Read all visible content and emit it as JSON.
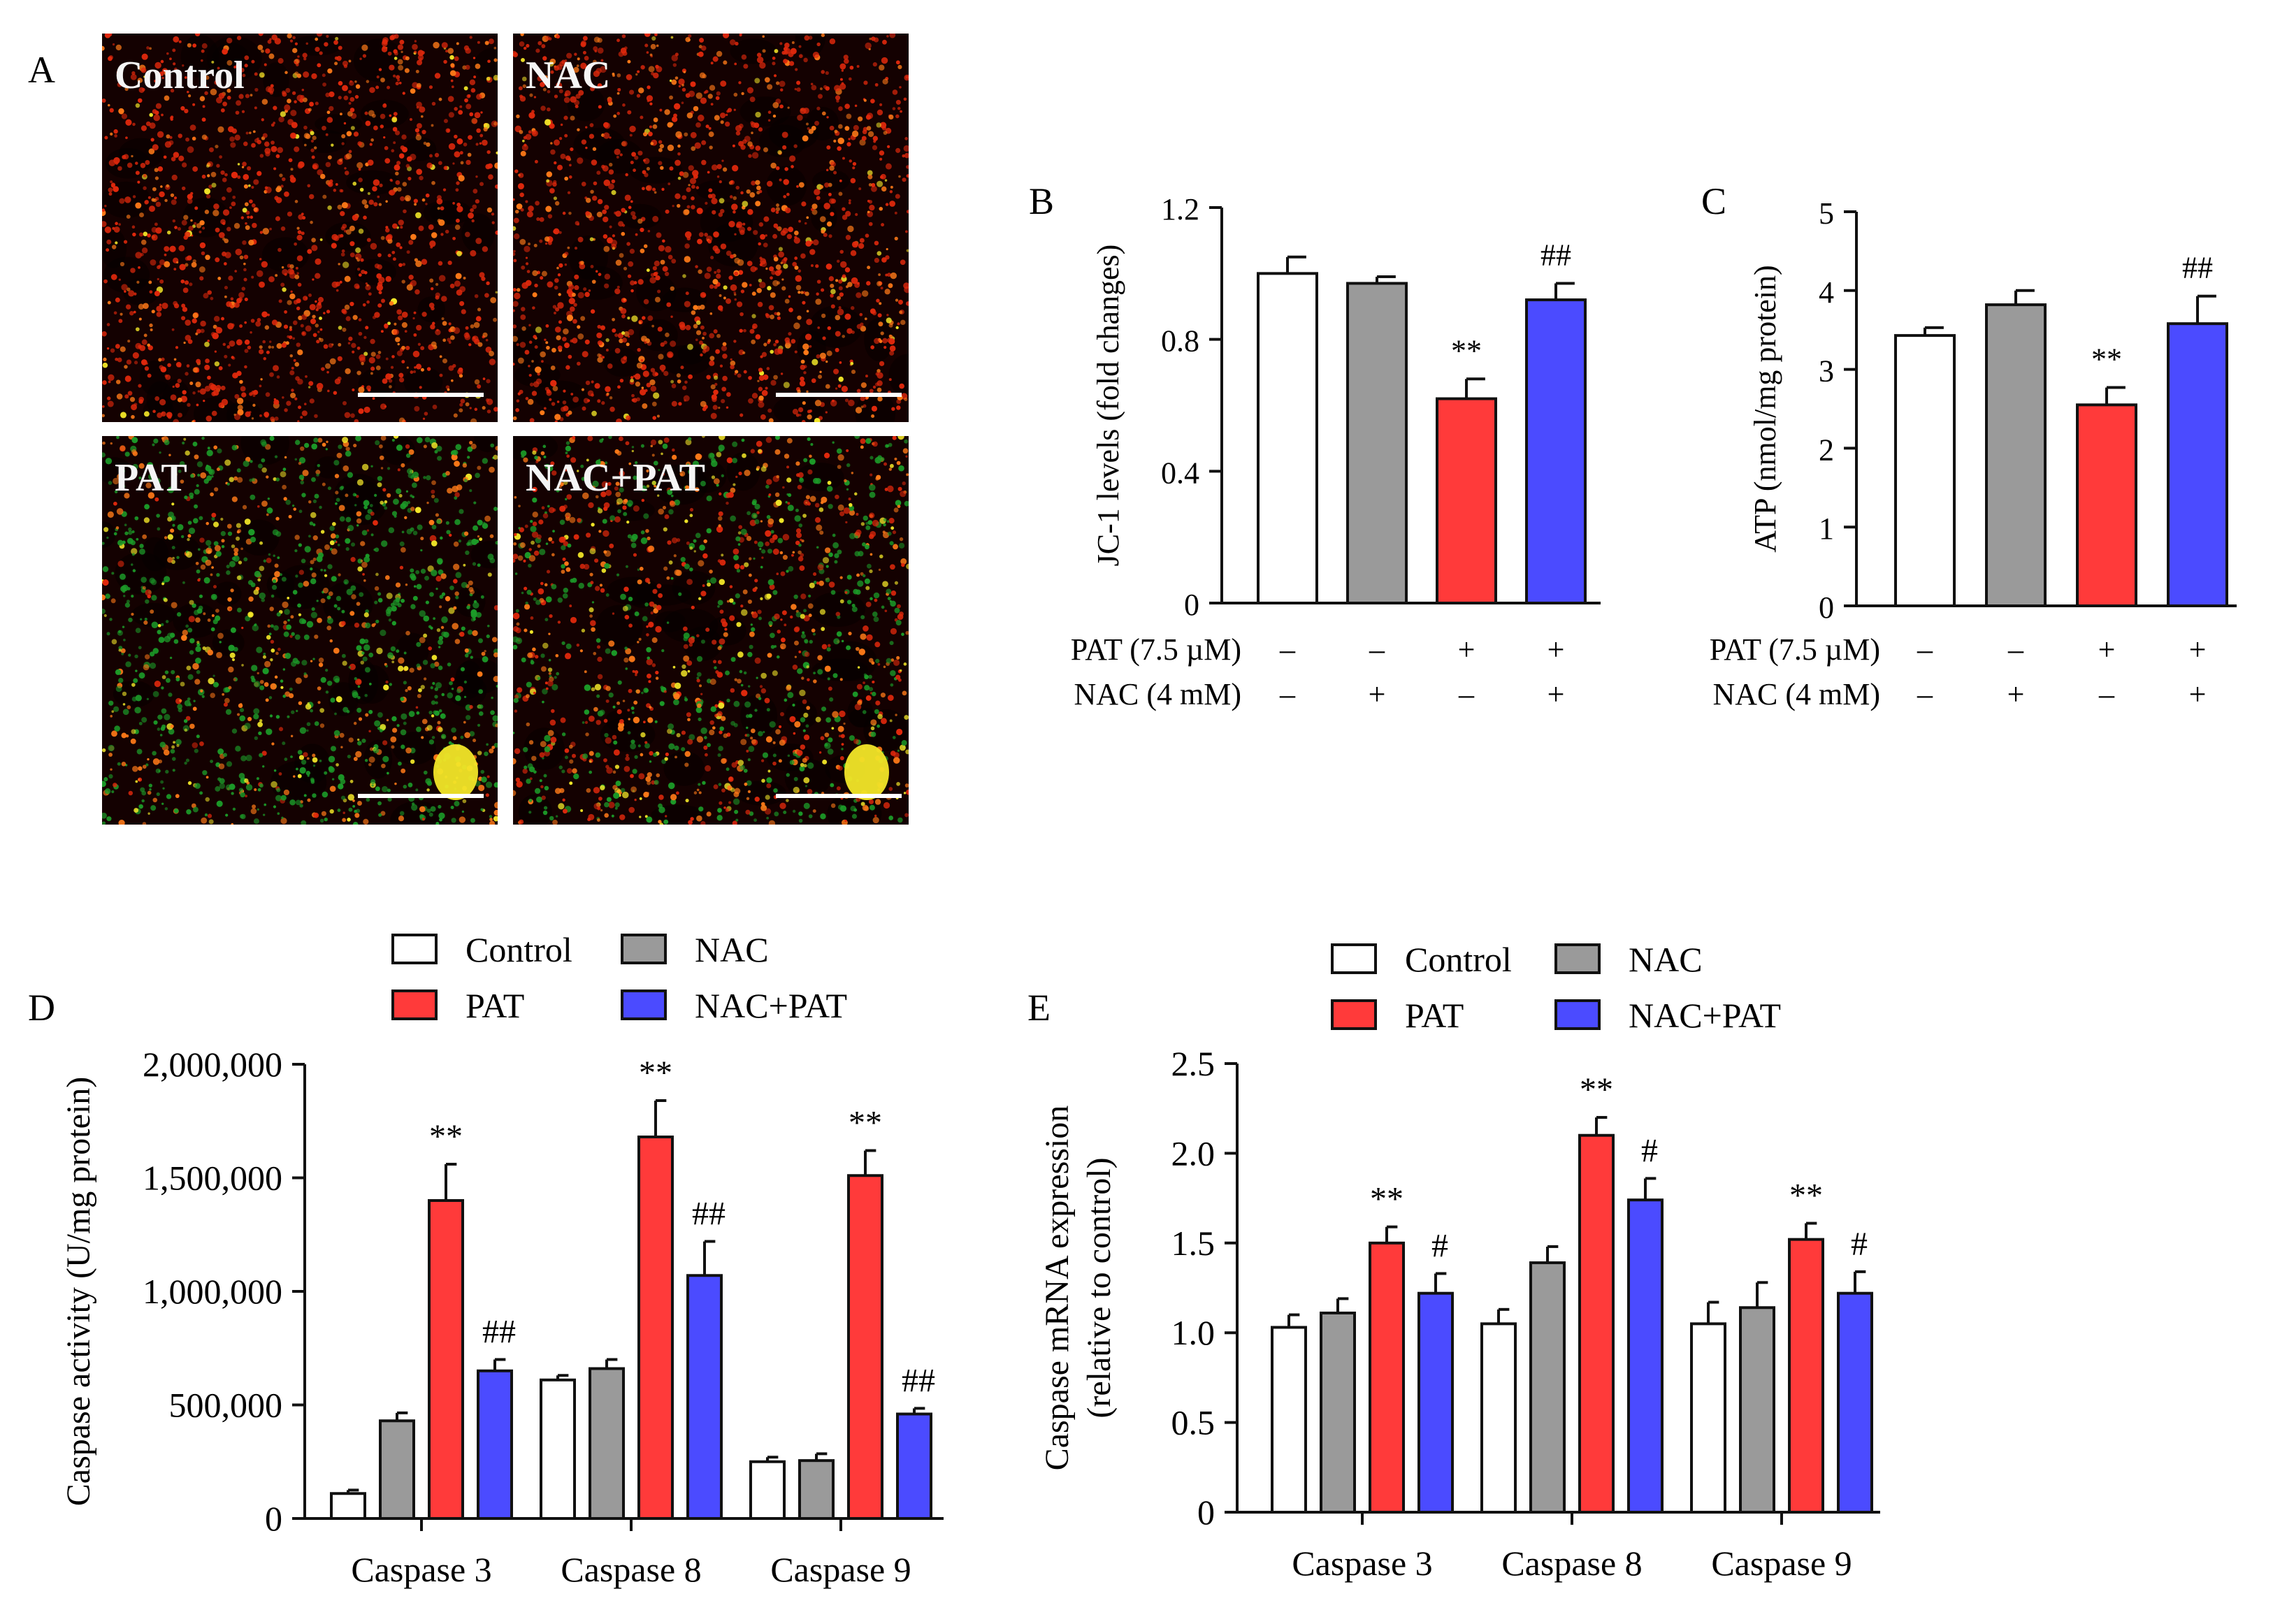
{
  "colors": {
    "control": "#ffffff",
    "nac": "#9a9a9a",
    "pat": "#ff3a3a",
    "nacpat": "#4b4bff",
    "axis": "#111111",
    "micro_bg": "#140101",
    "micro_red": "#e0280c",
    "micro_orange": "#ff7a18",
    "micro_green": "#1c9a28",
    "micro_yellow": "#f2e628",
    "micro_label": "#f5f5f5"
  },
  "panel_a": {
    "letter": "A",
    "images": [
      {
        "label": "Control",
        "style": "red"
      },
      {
        "label": "NAC",
        "style": "red"
      },
      {
        "label": "PAT",
        "style": "green"
      },
      {
        "label": "NAC+PAT",
        "style": "mixed"
      }
    ]
  },
  "chart_data": [
    {
      "id": "B",
      "letter": "B",
      "type": "bar",
      "ylabel": "JC-1 levels (fold changes)",
      "ylim": [
        0,
        1.2
      ],
      "yticks": [
        0,
        0.4,
        0.8,
        1.2
      ],
      "ytick_labels": [
        "0",
        "0.4",
        "0.8",
        "1.2"
      ],
      "groups": [
        "Control",
        "NAC",
        "PAT",
        "NAC+PAT"
      ],
      "values": [
        1.0,
        0.97,
        0.62,
        0.92
      ],
      "errors": [
        0.05,
        0.02,
        0.06,
        0.05
      ],
      "annotations": [
        "",
        "",
        "**",
        "##"
      ],
      "treatments": [
        {
          "label": "PAT (7.5 µM)",
          "signs": [
            "–",
            "–",
            "+",
            "+"
          ]
        },
        {
          "label": "NAC (4 mM)",
          "signs": [
            "–",
            "+",
            "–",
            "+"
          ]
        }
      ]
    },
    {
      "id": "C",
      "letter": "C",
      "type": "bar",
      "ylabel": "ATP (nmol/mg protein)",
      "ylim": [
        0,
        5
      ],
      "yticks": [
        0,
        1,
        2,
        3,
        4,
        5
      ],
      "ytick_labels": [
        "0",
        "1",
        "2",
        "3",
        "4",
        "5"
      ],
      "groups": [
        "Control",
        "NAC",
        "PAT",
        "NAC+PAT"
      ],
      "values": [
        3.43,
        3.82,
        2.55,
        3.58
      ],
      "errors": [
        0.1,
        0.18,
        0.22,
        0.35
      ],
      "annotations": [
        "",
        "",
        "**",
        "##"
      ],
      "treatments": [
        {
          "label": "PAT (7.5 µM)",
          "signs": [
            "–",
            "–",
            "+",
            "+"
          ]
        },
        {
          "label": "NAC (4 mM)",
          "signs": [
            "–",
            "+",
            "–",
            "+"
          ]
        }
      ]
    },
    {
      "id": "D",
      "letter": "D",
      "type": "bar",
      "ylabel": "Caspase activity (U/mg protein)",
      "ylim": [
        0,
        2000000
      ],
      "yticks": [
        0,
        500000,
        1000000,
        1500000,
        2000000
      ],
      "ytick_labels": [
        "0",
        "500,000",
        "1,000,000",
        "1,500,000",
        "2,000,000"
      ],
      "categories": [
        "Caspase 3",
        "Caspase 8",
        "Caspase 9"
      ],
      "legend": [
        "Control",
        "NAC",
        "PAT",
        "NAC+PAT"
      ],
      "series": [
        {
          "name": "Control",
          "values": [
            110000,
            610000,
            250000
          ],
          "errors": [
            15000,
            20000,
            20000
          ]
        },
        {
          "name": "NAC",
          "values": [
            430000,
            660000,
            255000
          ],
          "errors": [
            35000,
            40000,
            30000
          ]
        },
        {
          "name": "PAT",
          "values": [
            1400000,
            1680000,
            1510000
          ],
          "errors": [
            160000,
            160000,
            110000
          ]
        },
        {
          "name": "NAC+PAT",
          "values": [
            650000,
            1070000,
            460000
          ],
          "errors": [
            50000,
            150000,
            25000
          ]
        }
      ],
      "annotations": [
        {
          "series": 2,
          "category": 0,
          "text": "**"
        },
        {
          "series": 3,
          "category": 0,
          "text": "##"
        },
        {
          "series": 2,
          "category": 1,
          "text": "**"
        },
        {
          "series": 3,
          "category": 1,
          "text": "##"
        },
        {
          "series": 2,
          "category": 2,
          "text": "**"
        },
        {
          "series": 3,
          "category": 2,
          "text": "##"
        }
      ]
    },
    {
      "id": "E",
      "letter": "E",
      "type": "bar",
      "ylabel_lines": [
        "Caspase mRNA expression",
        "(relative to control)"
      ],
      "ylim": [
        0,
        2.5
      ],
      "yticks": [
        0,
        0.5,
        1.0,
        1.5,
        2.0,
        2.5
      ],
      "ytick_labels": [
        "0",
        "0.5",
        "1.0",
        "1.5",
        "2.0",
        "2.5"
      ],
      "categories": [
        "Caspase 3",
        "Caspase 8",
        "Caspase 9"
      ],
      "legend": [
        "Control",
        "NAC",
        "PAT",
        "NAC+PAT"
      ],
      "series": [
        {
          "name": "Control",
          "values": [
            1.03,
            1.05,
            1.05
          ],
          "errors": [
            0.07,
            0.08,
            0.12
          ]
        },
        {
          "name": "NAC",
          "values": [
            1.11,
            1.39,
            1.14
          ],
          "errors": [
            0.08,
            0.09,
            0.14
          ]
        },
        {
          "name": "PAT",
          "values": [
            1.5,
            2.1,
            1.52
          ],
          "errors": [
            0.09,
            0.1,
            0.09
          ]
        },
        {
          "name": "NAC+PAT",
          "values": [
            1.22,
            1.74,
            1.22
          ],
          "errors": [
            0.11,
            0.12,
            0.12
          ]
        }
      ],
      "annotations": [
        {
          "series": 2,
          "category": 0,
          "text": "**"
        },
        {
          "series": 3,
          "category": 0,
          "text": "#"
        },
        {
          "series": 2,
          "category": 1,
          "text": "**"
        },
        {
          "series": 3,
          "category": 1,
          "text": "#"
        },
        {
          "series": 2,
          "category": 2,
          "text": "**"
        },
        {
          "series": 3,
          "category": 2,
          "text": "#"
        }
      ]
    }
  ]
}
